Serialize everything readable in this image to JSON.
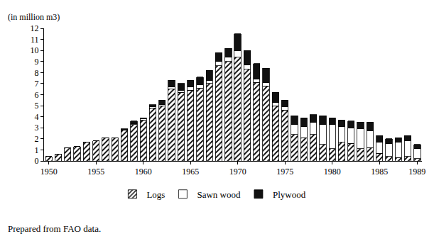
{
  "chart_data": {
    "type": "bar",
    "stacked": true,
    "ylabel": "(in million m3)",
    "annotations": [
      "Prepared from FAO data."
    ],
    "categories": [
      "1950",
      null,
      null,
      null,
      null,
      "1955",
      null,
      null,
      null,
      null,
      "1960",
      null,
      null,
      null,
      null,
      "1965",
      null,
      null,
      null,
      null,
      "1970",
      null,
      null,
      null,
      null,
      "1975",
      null,
      null,
      null,
      null,
      "1980",
      null,
      null,
      null,
      null,
      "1985",
      null,
      null,
      null,
      "1989"
    ],
    "series": [
      {
        "name": "Logs",
        "color": "#ffffff",
        "marker": "hatched",
        "values": [
          0.4,
          0.6,
          1.2,
          1.3,
          1.7,
          1.8,
          2.1,
          2.1,
          2.8,
          3.3,
          3.7,
          4.8,
          5.0,
          6.5,
          6.2,
          6.4,
          6.6,
          7.0,
          8.6,
          9.0,
          9.4,
          8.3,
          7.1,
          6.8,
          5.0,
          4.6,
          2.4,
          2.1,
          2.4,
          1.5,
          1.1,
          1.7,
          1.6,
          1.1,
          1.2,
          0.7,
          0.4,
          0.3,
          0.4,
          0.2
        ]
      },
      {
        "name": "Sawn wood",
        "color": "#ffffff",
        "marker": "plain",
        "values": [
          0,
          0,
          0,
          0,
          0,
          0,
          0,
          0,
          0,
          0.1,
          0.1,
          0.1,
          0.1,
          0.2,
          0.2,
          0.3,
          0.3,
          0.3,
          0.4,
          0.4,
          0.6,
          0.4,
          0.3,
          0.3,
          0.3,
          0.3,
          0.9,
          1.0,
          1.1,
          1.8,
          2.2,
          1.4,
          1.4,
          1.8,
          1.5,
          1.0,
          1.2,
          1.4,
          1.4,
          0.9
        ]
      },
      {
        "name": "Plywood",
        "color": "#111111",
        "marker": "plain",
        "values": [
          0,
          0,
          0,
          0,
          0,
          0,
          0,
          0,
          0.1,
          0.2,
          0.1,
          0.2,
          0.4,
          0.6,
          0.6,
          0.6,
          0.7,
          0.9,
          0.8,
          0.8,
          1.5,
          1.3,
          1.4,
          1.3,
          0.9,
          0.6,
          0.8,
          0.8,
          0.7,
          0.8,
          0.6,
          0.6,
          0.6,
          0.6,
          0.8,
          0.6,
          0.4,
          0.4,
          0.5,
          0.4
        ]
      }
    ],
    "ylim": [
      0,
      12
    ],
    "yticks": [
      0,
      1,
      2,
      3,
      4,
      5,
      6,
      7,
      8,
      9,
      10,
      11,
      12
    ],
    "grid": false,
    "legend": "bottom"
  }
}
